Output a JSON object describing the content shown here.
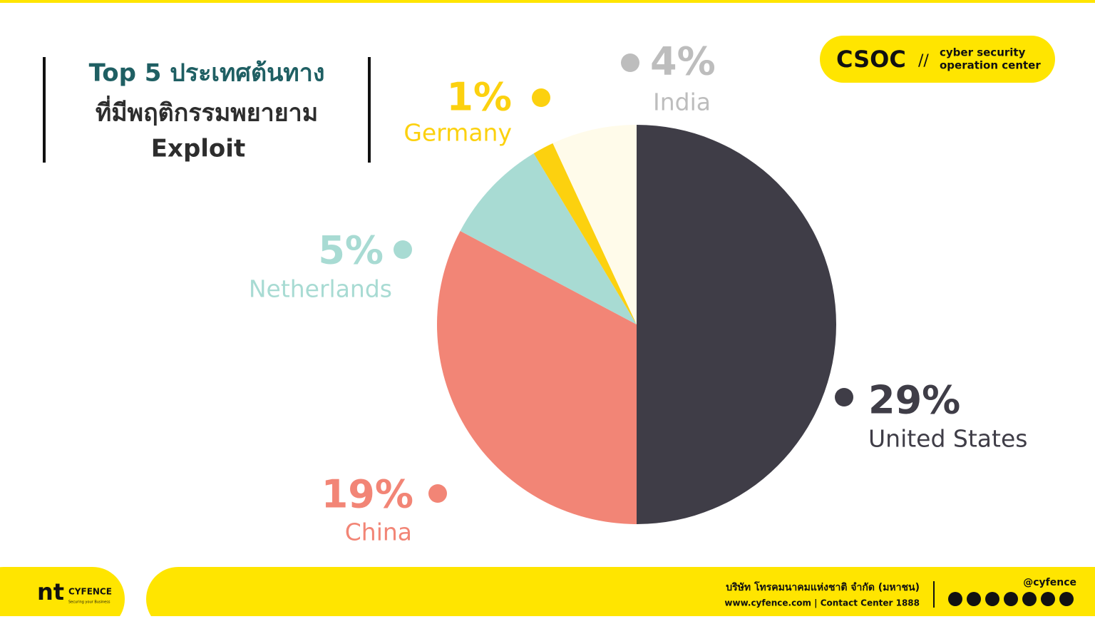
{
  "chart_data": {
    "type": "pie",
    "title": [
      "Top 5 ประเทศต้นทาง",
      "ที่มีพฤติกรรมพยายาม",
      "Exploit"
    ],
    "categories": [
      "United States",
      "China",
      "Netherlands",
      "Germany",
      "India"
    ],
    "values": [
      29,
      19,
      5,
      1,
      4
    ],
    "value_labels": [
      "29%",
      "19%",
      "5%",
      "1%",
      "4%"
    ],
    "colors": [
      "#3f3d47",
      "#f28576",
      "#a8dbd3",
      "#fcd10f",
      "#fffbea"
    ]
  },
  "badge": {
    "name": "CSOC",
    "separator": "//",
    "line1": "cyber security",
    "line2": "operation center"
  },
  "footer": {
    "logo": "nt",
    "brand": "CYFENCE",
    "tagline": "Securing your Business",
    "company": "บริษัท โทรคมนาคมแห่งชาติ จำกัด (มหาชน)",
    "contact": "www.cyfence.com | Contact Center 1888",
    "handle": "@cyfence"
  }
}
